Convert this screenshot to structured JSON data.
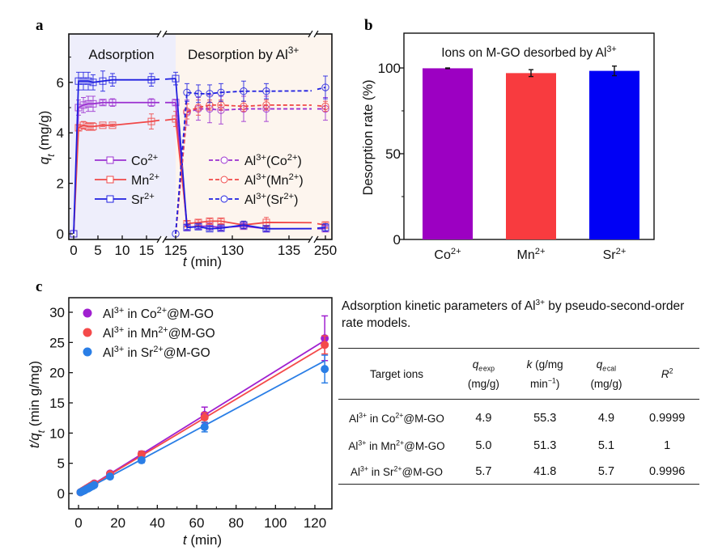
{
  "chart_data": [
    {
      "panel": "a",
      "type": "line",
      "title": "",
      "xlabel": "t (min)",
      "ylabel": "qt (mg/g)",
      "ylim": [
        -0.2,
        7.6
      ],
      "yticks": [
        "0",
        "2",
        "4",
        "6"
      ],
      "xticks": [
        "0",
        "5",
        "10",
        "15",
        "125",
        "130",
        "135",
        "250"
      ],
      "x_break_segments": [
        [
          -1,
          19
        ],
        [
          125,
          137.1
        ],
        [
          249,
          251
        ]
      ],
      "regions": [
        {
          "label": "Adsorption",
          "color": "#eeeefb"
        },
        {
          "label_main": "Desorption by Al",
          "label_sup": "3+",
          "color": "#fdf5ee"
        }
      ],
      "series": [
        {
          "name": "Co",
          "sup": "2+",
          "color": "#9b30d0",
          "style": "solid",
          "marker": "square",
          "x": [
            0,
            1,
            2,
            3,
            4,
            6,
            8,
            16,
            125
          ],
          "y": [
            0,
            5.0,
            5.1,
            5.15,
            5.15,
            5.2,
            5.2,
            5.2,
            5.2
          ],
          "err": [
            0,
            0.3,
            0.3,
            0.3,
            0.3,
            0.1,
            0.15,
            0.15,
            0.1
          ]
        },
        {
          "name": "Mn",
          "sup": "2+",
          "color": "#f04848",
          "style": "solid",
          "marker": "square",
          "x": [
            0,
            1,
            2,
            3,
            4,
            6,
            8,
            16,
            125
          ],
          "y": [
            0,
            4.2,
            4.3,
            4.25,
            4.25,
            4.3,
            4.3,
            4.45,
            4.55
          ],
          "err": [
            0,
            0.1,
            0.15,
            0.15,
            0.15,
            0.05,
            0.05,
            0.3,
            0.3
          ]
        },
        {
          "name": "Sr",
          "sup": "2+",
          "color": "#1f1fe0",
          "style": "solid",
          "marker": "square",
          "x": [
            0,
            1,
            2,
            3,
            4,
            6,
            8,
            16,
            125
          ],
          "y": [
            0,
            6.05,
            6.05,
            6.05,
            6.0,
            6.05,
            6.1,
            6.1,
            6.15
          ],
          "err": [
            0,
            0.35,
            0.35,
            0.35,
            0.3,
            0.4,
            0.25,
            0.25,
            0.25
          ]
        },
        {
          "name": "Co",
          "sup": "2+",
          "color": "#9b30d0",
          "style": "solid",
          "marker": "square",
          "segment": "desorb-residual",
          "x": [
            126,
            127,
            128,
            129,
            131,
            133,
            250
          ],
          "y": [
            0.25,
            0.3,
            0.3,
            0.25,
            0.3,
            0.2,
            0.2
          ],
          "err": [
            0.1,
            0.1,
            0.1,
            0.1,
            0.1,
            0.1,
            0.1
          ]
        },
        {
          "name": "Mn",
          "sup": "2+",
          "color": "#f04848",
          "style": "solid",
          "marker": "square",
          "segment": "desorb-residual",
          "x": [
            126,
            127,
            128,
            129,
            131,
            133,
            250
          ],
          "y": [
            0.4,
            0.45,
            0.5,
            0.5,
            0.35,
            0.45,
            0.35
          ],
          "err": [
            0.1,
            0.1,
            0.1,
            0.1,
            0.15,
            0.2,
            0.1
          ]
        },
        {
          "name": "Sr",
          "sup": "2+",
          "color": "#1f1fe0",
          "style": "solid",
          "marker": "square",
          "segment": "desorb-residual",
          "x": [
            126,
            127,
            128,
            129,
            131,
            133,
            250
          ],
          "y": [
            0.25,
            0.28,
            0.2,
            0.22,
            0.35,
            0.2,
            0.25
          ],
          "err": [
            0.08,
            0.08,
            0.08,
            0.08,
            0.15,
            0.08,
            0.15
          ]
        },
        {
          "name": "Al",
          "sup": "3+",
          "paren": "Co",
          "paren_sup": "2+",
          "color": "#9b30d0",
          "style": "dashed",
          "marker": "circle",
          "x": [
            126,
            127,
            128,
            129,
            131,
            133,
            250
          ],
          "y": [
            4.8,
            4.95,
            4.95,
            4.9,
            4.95,
            4.95,
            4.95
          ],
          "err": [
            0.5,
            0.45,
            0.55,
            0.55,
            0.5,
            0.5,
            0.45
          ]
        },
        {
          "name": "Al",
          "sup": "3+",
          "paren": "Mn",
          "paren_sup": "2+",
          "color": "#f04848",
          "style": "dashed",
          "marker": "circle",
          "x": [
            126,
            127,
            128,
            129,
            131,
            133,
            250
          ],
          "y": [
            4.85,
            5.0,
            5.1,
            5.1,
            5.05,
            5.1,
            5.05
          ],
          "err": [
            0.3,
            0.3,
            0.2,
            0.2,
            0.2,
            0.2,
            0.2
          ]
        },
        {
          "name": "Al",
          "sup": "3+",
          "paren": "Sr",
          "paren_sup": "2+",
          "color": "#1f1fe0",
          "style": "dashed",
          "marker": "circle",
          "x": [
            125,
            126,
            127,
            128,
            129,
            131,
            133,
            250
          ],
          "y": [
            0,
            5.6,
            5.55,
            5.55,
            5.6,
            5.65,
            5.65,
            5.8
          ],
          "err": [
            0,
            0.35,
            0.35,
            0.35,
            0.35,
            0.4,
            0.3,
            0.45
          ]
        }
      ]
    },
    {
      "panel": "b",
      "type": "bar",
      "title_main": "Ions on M-GO desorbed by Al",
      "title_sup": "3+",
      "xlabel": "",
      "ylabel": "Desorption rate (%)",
      "ylim": [
        0,
        120
      ],
      "yticks": [
        "0",
        "50",
        "100"
      ],
      "categories": [
        {
          "name": "Co",
          "sup": "2+"
        },
        {
          "name": "Mn",
          "sup": "2+"
        },
        {
          "name": "Sr",
          "sup": "2+"
        }
      ],
      "values": [
        99.8,
        97.0,
        98.3
      ],
      "errors": [
        0.2,
        2.0,
        2.8
      ],
      "colors": [
        "#9c00c2",
        "#f83b3f",
        "#0000f5"
      ]
    },
    {
      "panel": "c",
      "type": "scatter",
      "xlabel": "t (min)",
      "ylabel": "t/qt (min g/mg)",
      "xlim": [
        -3,
        130
      ],
      "ylim": [
        -2.5,
        32
      ],
      "xticks": [
        "0",
        "20",
        "40",
        "60",
        "80",
        "100",
        "120"
      ],
      "yticks": [
        "0",
        "5",
        "10",
        "15",
        "20",
        "25",
        "30"
      ],
      "legend": "top-left",
      "series": [
        {
          "name": "Al",
          "sup": "3+",
          "rest": " in Co",
          "rest_sup": "2+",
          "tail": "@M-GO",
          "color": "#a020d0",
          "x": [
            1,
            2,
            3,
            4,
            5,
            6,
            7,
            8,
            16,
            32,
            64,
            125
          ],
          "y": [
            0.2,
            0.4,
            0.6,
            0.8,
            1.0,
            1.2,
            1.4,
            1.65,
            3.3,
            6.5,
            13.0,
            25.7
          ],
          "err": [
            0,
            0,
            0,
            0,
            0,
            0,
            0,
            0.2,
            0.3,
            0.5,
            1.3,
            3.7
          ],
          "fit": [
            0.02,
            0.2025
          ]
        },
        {
          "name": "Al",
          "sup": "3+",
          "rest": " in Mn",
          "rest_sup": "2+",
          "tail": "@M-GO",
          "color": "#f44a4a",
          "x": [
            1,
            2,
            3,
            4,
            5,
            6,
            7,
            8,
            16,
            32,
            64,
            125
          ],
          "y": [
            0.2,
            0.4,
            0.6,
            0.8,
            1.0,
            1.2,
            1.4,
            1.6,
            3.2,
            6.5,
            12.6,
            24.6
          ],
          "err": [
            0,
            0,
            0,
            0,
            0,
            0,
            0,
            0.2,
            0.3,
            0.4,
            0.8,
            1.5
          ],
          "fit": [
            0.02,
            0.195
          ]
        },
        {
          "name": "Al",
          "sup": "3+",
          "rest": " in Sr",
          "rest_sup": "2+",
          "tail": "@M-GO",
          "color": "#2a7ee6",
          "x": [
            1,
            2,
            3,
            4,
            5,
            6,
            7,
            8,
            16,
            32,
            64,
            125
          ],
          "y": [
            0.2,
            0.35,
            0.5,
            0.7,
            0.85,
            1.05,
            1.2,
            1.4,
            2.8,
            5.5,
            11.0,
            20.6
          ],
          "err": [
            0,
            0,
            0,
            0,
            0,
            0,
            0,
            0.15,
            0.2,
            0.4,
            0.8,
            2.3
          ],
          "fit": [
            0.02,
            0.1755
          ]
        }
      ]
    }
  ],
  "panel_labels": {
    "a": "a",
    "b": "b",
    "c": "c"
  },
  "table": {
    "caption_part1": "Adsorption kinetic parameters of Al",
    "caption_sup": "3+",
    "caption_part2": " by pseudo-second-order rate models.",
    "headers": {
      "col1": "Target ions",
      "col2_q": "q",
      "col2_sub": "e exp",
      "col2_unit": "(mg/g)",
      "col3_k": "k",
      "col3_rest": " (g/mg",
      "col3_unit": "min",
      "col3_unit_sup": "−1",
      "col3_unit_close": ")",
      "col4_q": "q",
      "col4_sub": "e cal",
      "col4_unit": "(mg/g)",
      "col5": "R",
      "col5_sup": "2"
    },
    "rows": [
      {
        "ion_a": "Al",
        "ion_a_sup": "3+",
        "ion_b": " in Co",
        "ion_b_sup": "2+",
        "ion_c": "@M-GO",
        "qexp": "4.9",
        "k": "55.3",
        "qcal": "4.9",
        "r2": "0.9999"
      },
      {
        "ion_a": "Al",
        "ion_a_sup": "3+",
        "ion_b": " in Mn",
        "ion_b_sup": "2+",
        "ion_c": "@M-GO",
        "qexp": "5.0",
        "k": "51.3",
        "qcal": "5.1",
        "r2": "1"
      },
      {
        "ion_a": "Al",
        "ion_a_sup": "3+",
        "ion_b": " in Sr",
        "ion_b_sup": "2+",
        "ion_c": "@M-GO",
        "qexp": "5.7",
        "k": "41.8",
        "qcal": "5.7",
        "r2": "0.9996"
      }
    ]
  }
}
